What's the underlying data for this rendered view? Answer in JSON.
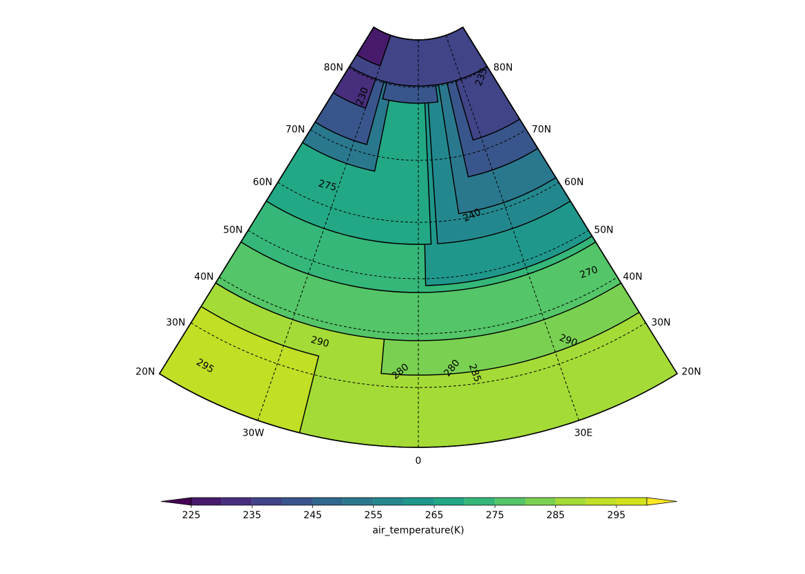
{
  "map": {
    "parallels": [
      "20N",
      "30N",
      "40N",
      "50N",
      "60N",
      "70N",
      "80N"
    ],
    "meridians": [
      "30W",
      "0",
      "30E"
    ],
    "contour_labels": [
      295,
      290,
      280,
      280,
      285,
      290,
      275,
      270,
      240,
      230,
      235
    ]
  },
  "colorbar": {
    "label": "air_temperature(K)",
    "levels": [
      225,
      230,
      235,
      240,
      245,
      250,
      255,
      260,
      265,
      270,
      275,
      280,
      285,
      290,
      295,
      300
    ],
    "ticks": [
      225,
      235,
      245,
      255,
      265,
      275,
      285,
      295
    ],
    "colors": [
      "#481a6c",
      "#472f7d",
      "#414487",
      "#39568c",
      "#31688e",
      "#2a788e",
      "#23888e",
      "#1f988b",
      "#22a884",
      "#35b779",
      "#54c568",
      "#7ad151",
      "#a5db36",
      "#c0df25",
      "#d2e21b"
    ],
    "under_color": "#440154",
    "over_color": "#fde725"
  }
}
